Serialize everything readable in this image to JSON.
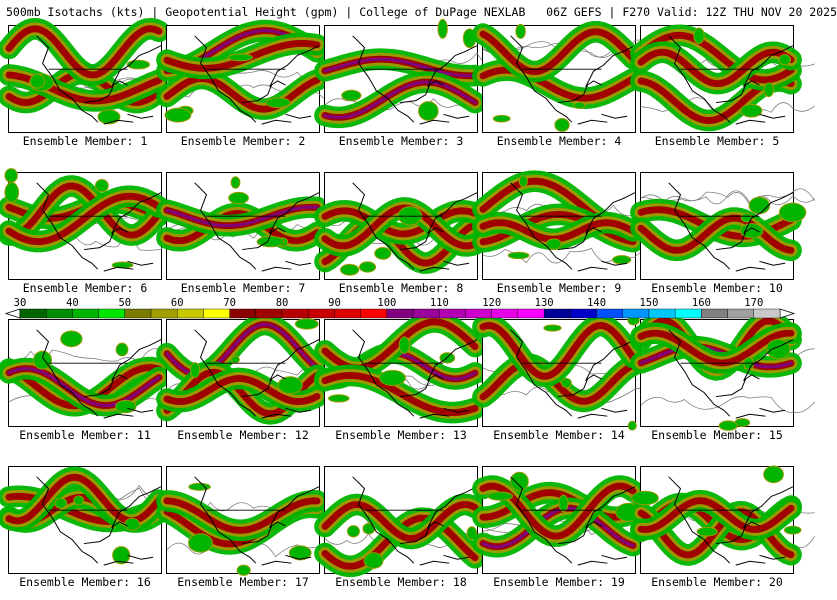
{
  "header": {
    "product": "500mb Isotachs (kts)",
    "field": "Geopotential Height (gpm)",
    "source": "College of DuPage NEXLAB",
    "run": "06Z GEFS",
    "valid": "F270 Valid: 12Z THU NOV 20 2025"
  },
  "separator": "|",
  "panels": [
    {
      "label": "Ensemble Member: 1",
      "seed": 1
    },
    {
      "label": "Ensemble Member: 2",
      "seed": 2
    },
    {
      "label": "Ensemble Member: 3",
      "seed": 3
    },
    {
      "label": "Ensemble Member: 4",
      "seed": 4
    },
    {
      "label": "Ensemble Member: 5",
      "seed": 5
    },
    {
      "label": "Ensemble Member: 6",
      "seed": 6
    },
    {
      "label": "Ensemble Member: 7",
      "seed": 7
    },
    {
      "label": "Ensemble Member: 8",
      "seed": 8
    },
    {
      "label": "Ensemble Member: 9",
      "seed": 9
    },
    {
      "label": "Ensemble Member: 10",
      "seed": 10
    },
    {
      "label": "Ensemble Member: 11",
      "seed": 11
    },
    {
      "label": "Ensemble Member: 12",
      "seed": 12
    },
    {
      "label": "Ensemble Member: 13",
      "seed": 13
    },
    {
      "label": "Ensemble Member: 14",
      "seed": 14
    },
    {
      "label": "Ensemble Member: 15",
      "seed": 15
    },
    {
      "label": "Ensemble Member: 16",
      "seed": 16
    },
    {
      "label": "Ensemble Member: 17",
      "seed": 17
    },
    {
      "label": "Ensemble Member: 18",
      "seed": 18
    },
    {
      "label": "Ensemble Member: 19",
      "seed": 19
    },
    {
      "label": "Ensemble Member: 20",
      "seed": 20
    }
  ],
  "colorbar": {
    "unit": "kts",
    "min": 30,
    "max": 175,
    "labels": [
      30,
      40,
      50,
      60,
      70,
      80,
      90,
      100,
      110,
      120,
      130,
      140,
      150,
      160,
      170
    ],
    "bins": [
      {
        "from": 30,
        "to": 35,
        "color": "#006400"
      },
      {
        "from": 35,
        "to": 40,
        "color": "#008c00"
      },
      {
        "from": 40,
        "to": 45,
        "color": "#00b400"
      },
      {
        "from": 45,
        "to": 50,
        "color": "#00e600"
      },
      {
        "from": 50,
        "to": 55,
        "color": "#7a7a00"
      },
      {
        "from": 55,
        "to": 60,
        "color": "#a0a000"
      },
      {
        "from": 60,
        "to": 65,
        "color": "#c8c800"
      },
      {
        "from": 65,
        "to": 70,
        "color": "#ffff00"
      },
      {
        "from": 70,
        "to": 75,
        "color": "#8b0000"
      },
      {
        "from": 75,
        "to": 80,
        "color": "#a00000"
      },
      {
        "from": 80,
        "to": 85,
        "color": "#b40000"
      },
      {
        "from": 85,
        "to": 90,
        "color": "#c80000"
      },
      {
        "from": 90,
        "to": 95,
        "color": "#dc0000"
      },
      {
        "from": 95,
        "to": 100,
        "color": "#ff0000"
      },
      {
        "from": 100,
        "to": 105,
        "color": "#800080"
      },
      {
        "from": 105,
        "to": 110,
        "color": "#9a009a"
      },
      {
        "from": 110,
        "to": 115,
        "color": "#b400b4"
      },
      {
        "from": 115,
        "to": 120,
        "color": "#ce00ce"
      },
      {
        "from": 120,
        "to": 125,
        "color": "#e600e6"
      },
      {
        "from": 125,
        "to": 130,
        "color": "#ff00ff"
      },
      {
        "from": 130,
        "to": 135,
        "color": "#000096"
      },
      {
        "from": 135,
        "to": 140,
        "color": "#0000c8"
      },
      {
        "from": 140,
        "to": 145,
        "color": "#0050ff"
      },
      {
        "from": 145,
        "to": 150,
        "color": "#0096ff"
      },
      {
        "from": 150,
        "to": 155,
        "color": "#00c8ff"
      },
      {
        "from": 155,
        "to": 160,
        "color": "#00ffff"
      },
      {
        "from": 160,
        "to": 165,
        "color": "#808080"
      },
      {
        "from": 165,
        "to": 170,
        "color": "#a0a0a0"
      },
      {
        "from": 170,
        "to": 175,
        "color": "#c8c8c8"
      }
    ]
  },
  "colors": {
    "coast": "#000000",
    "height_contour": "#7f7f7f",
    "jet_outer": "#00b400",
    "jet_mid": "#9a9a00",
    "jet_core": "#a00000",
    "jet_max": "#800080"
  }
}
